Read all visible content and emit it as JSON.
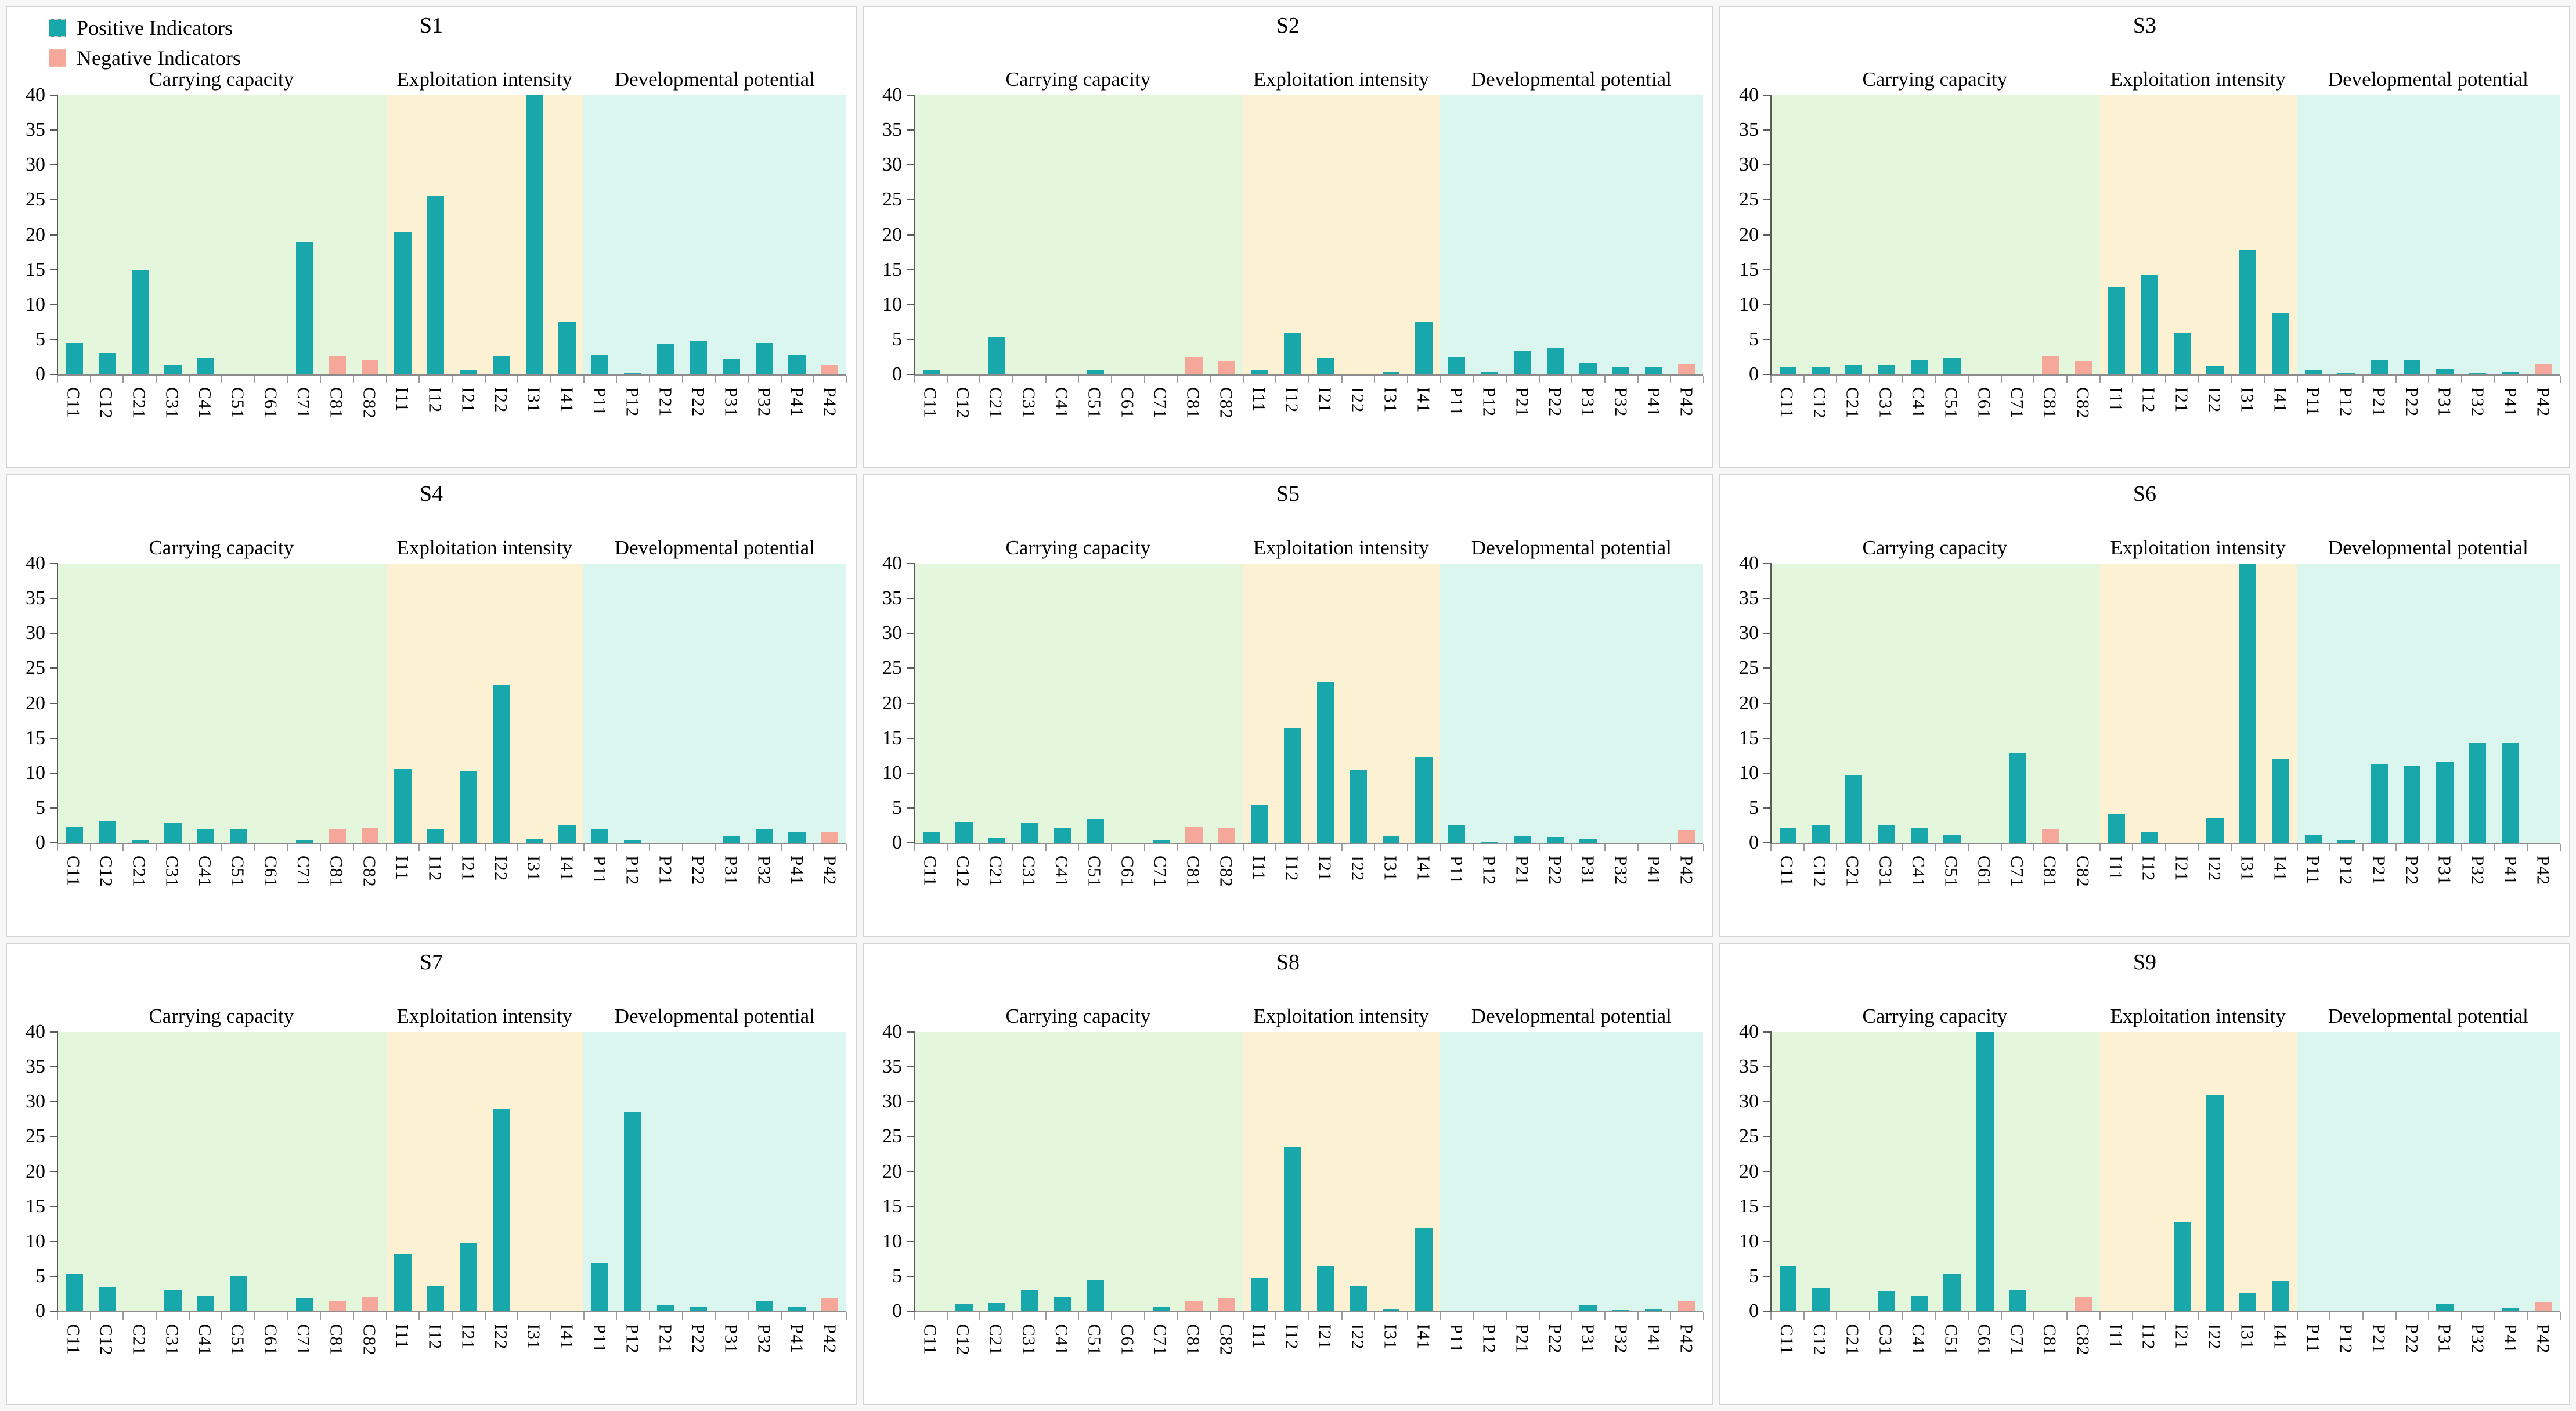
{
  "legend": {
    "positive": "Positive Indicators",
    "negative": "Negative Indicators"
  },
  "colors": {
    "positive": "#18a7aa",
    "negative": "#f5a89a",
    "band_carrying": "#e4f6db",
    "band_exploitation": "#fcf1d3",
    "band_developmental": "#daf6ee",
    "axis": "#5a5a5a"
  },
  "sections": [
    {
      "label": "Carrying capacity",
      "start": 0,
      "count": 10
    },
    {
      "label": "Exploitation intensity",
      "start": 10,
      "count": 6
    },
    {
      "label": "Developmental potential",
      "start": 16,
      "count": 8
    }
  ],
  "negative_categories": [
    "C81",
    "C82",
    "P42"
  ],
  "y_axis": {
    "min": 0,
    "max": 40,
    "step": 5,
    "ticks": [
      0,
      5,
      10,
      15,
      20,
      25,
      30,
      35,
      40
    ]
  },
  "chart_data": [
    {
      "type": "bar",
      "title": "S1",
      "ylim": [
        0,
        40
      ],
      "categories": [
        "C11",
        "C12",
        "C21",
        "C31",
        "C41",
        "C51",
        "C61",
        "C71",
        "C81",
        "C82",
        "I11",
        "I12",
        "I21",
        "I22",
        "I31",
        "I41",
        "P11",
        "P12",
        "P21",
        "P22",
        "P31",
        "P32",
        "P41",
        "P42"
      ],
      "values": [
        4.5,
        3.0,
        15.0,
        1.3,
        2.3,
        0,
        0,
        19.0,
        2.7,
        2.0,
        20.5,
        25.5,
        0.6,
        2.7,
        40,
        7.5,
        2.8,
        0.2,
        4.3,
        4.8,
        2.2,
        4.5,
        2.8,
        1.3
      ]
    },
    {
      "type": "bar",
      "title": "S2",
      "ylim": [
        0,
        40
      ],
      "categories": [
        "C11",
        "C12",
        "C21",
        "C31",
        "C41",
        "C51",
        "C61",
        "C71",
        "C81",
        "C82",
        "I11",
        "I12",
        "I21",
        "I22",
        "I31",
        "I41",
        "P11",
        "P12",
        "P21",
        "P22",
        "P31",
        "P32",
        "P41",
        "P42"
      ],
      "values": [
        0.7,
        0,
        5.3,
        0,
        0,
        0.7,
        0,
        0,
        2.5,
        1.9,
        0.7,
        6.0,
        2.3,
        0,
        0.3,
        7.5,
        2.5,
        0.3,
        3.3,
        3.8,
        1.6,
        1.0,
        1.0,
        1.5
      ]
    },
    {
      "type": "bar",
      "title": "S3",
      "ylim": [
        0,
        40
      ],
      "categories": [
        "C11",
        "C12",
        "C21",
        "C31",
        "C41",
        "C51",
        "C61",
        "C71",
        "C81",
        "C82",
        "I11",
        "I12",
        "I21",
        "I22",
        "I31",
        "I41",
        "P11",
        "P12",
        "P21",
        "P22",
        "P31",
        "P32",
        "P41",
        "P42"
      ],
      "values": [
        1.0,
        1.0,
        1.4,
        1.3,
        2.0,
        2.3,
        0,
        0,
        2.6,
        1.9,
        12.5,
        14.3,
        6.0,
        1.2,
        17.8,
        8.8,
        0.7,
        0.2,
        2.1,
        2.1,
        0.8,
        0.2,
        0.3,
        1.5
      ]
    },
    {
      "type": "bar",
      "title": "S4",
      "ylim": [
        0,
        40
      ],
      "categories": [
        "C11",
        "C12",
        "C21",
        "C31",
        "C41",
        "C51",
        "C61",
        "C71",
        "C81",
        "C82",
        "I11",
        "I12",
        "I21",
        "I22",
        "I31",
        "I41",
        "P11",
        "P12",
        "P21",
        "P22",
        "P31",
        "P32",
        "P41",
        "P42"
      ],
      "values": [
        2.3,
        3.1,
        0.3,
        2.8,
        2.0,
        2.0,
        0,
        0.3,
        1.9,
        2.1,
        10.6,
        2.0,
        10.3,
        22.5,
        0.6,
        2.6,
        1.9,
        0.3,
        0,
        0,
        0.9,
        1.9,
        1.5,
        1.6
      ]
    },
    {
      "type": "bar",
      "title": "S5",
      "ylim": [
        0,
        40
      ],
      "categories": [
        "C11",
        "C12",
        "C21",
        "C31",
        "C41",
        "C51",
        "C61",
        "C71",
        "C81",
        "C82",
        "I11",
        "I12",
        "I21",
        "I22",
        "I31",
        "I41",
        "P11",
        "P12",
        "P21",
        "P22",
        "P31",
        "P32",
        "P41",
        "P42"
      ],
      "values": [
        1.5,
        3.0,
        0.7,
        2.8,
        2.2,
        3.4,
        0,
        0.3,
        2.3,
        2.2,
        5.4,
        16.5,
        23.0,
        10.5,
        1.0,
        12.2,
        2.5,
        0.2,
        0.9,
        0.8,
        0.5,
        0,
        0,
        1.8
      ]
    },
    {
      "type": "bar",
      "title": "S6",
      "ylim": [
        0,
        40
      ],
      "categories": [
        "C11",
        "C12",
        "C21",
        "C31",
        "C41",
        "C51",
        "C61",
        "C71",
        "C81",
        "C82",
        "I11",
        "I12",
        "I21",
        "I22",
        "I31",
        "I41",
        "P11",
        "P12",
        "P21",
        "P22",
        "P31",
        "P32",
        "P41",
        "P42"
      ],
      "values": [
        2.2,
        2.6,
        9.7,
        2.5,
        2.2,
        1.1,
        0,
        12.9,
        2.0,
        0,
        4.1,
        1.6,
        0,
        3.6,
        40,
        12.1,
        1.2,
        0.3,
        11.2,
        11.0,
        11.6,
        14.3,
        14.3,
        0
      ]
    },
    {
      "type": "bar",
      "title": "S7",
      "ylim": [
        0,
        40
      ],
      "categories": [
        "C11",
        "C12",
        "C21",
        "C31",
        "C41",
        "C51",
        "C61",
        "C71",
        "C81",
        "C82",
        "I11",
        "I12",
        "I21",
        "I22",
        "I31",
        "I41",
        "P11",
        "P12",
        "P21",
        "P22",
        "P31",
        "P32",
        "P41",
        "P42"
      ],
      "values": [
        5.3,
        3.5,
        0,
        3.0,
        2.2,
        5.0,
        0,
        1.9,
        1.4,
        2.1,
        8.2,
        3.7,
        9.8,
        29.0,
        0,
        0,
        6.9,
        28.5,
        0.8,
        0.6,
        0,
        1.4,
        0.6,
        1.9
      ]
    },
    {
      "type": "bar",
      "title": "S8",
      "ylim": [
        0,
        40
      ],
      "categories": [
        "C11",
        "C12",
        "C21",
        "C31",
        "C41",
        "C51",
        "C61",
        "C71",
        "C81",
        "C82",
        "I11",
        "I12",
        "I21",
        "I22",
        "I31",
        "I41",
        "P11",
        "P12",
        "P21",
        "P22",
        "P31",
        "P32",
        "P41",
        "P42"
      ],
      "values": [
        0,
        1.1,
        1.2,
        3.0,
        2.0,
        4.4,
        0,
        0.6,
        1.5,
        1.9,
        4.8,
        23.5,
        6.5,
        3.6,
        0.3,
        11.9,
        0,
        0,
        0,
        0,
        0.9,
        0.2,
        0.3,
        1.5
      ]
    },
    {
      "type": "bar",
      "title": "S9",
      "ylim": [
        0,
        40
      ],
      "categories": [
        "C11",
        "C12",
        "C21",
        "C31",
        "C41",
        "C51",
        "C61",
        "C71",
        "C81",
        "C82",
        "I11",
        "I12",
        "I21",
        "I22",
        "I31",
        "I41",
        "P11",
        "P12",
        "P21",
        "P22",
        "P31",
        "P32",
        "P41",
        "P42"
      ],
      "values": [
        6.5,
        3.3,
        0,
        2.8,
        2.2,
        5.3,
        40,
        3.0,
        0,
        2.0,
        0,
        0,
        12.8,
        31.0,
        2.6,
        4.3,
        0,
        0,
        0,
        0,
        1.1,
        0,
        0.5,
        1.3
      ]
    }
  ]
}
